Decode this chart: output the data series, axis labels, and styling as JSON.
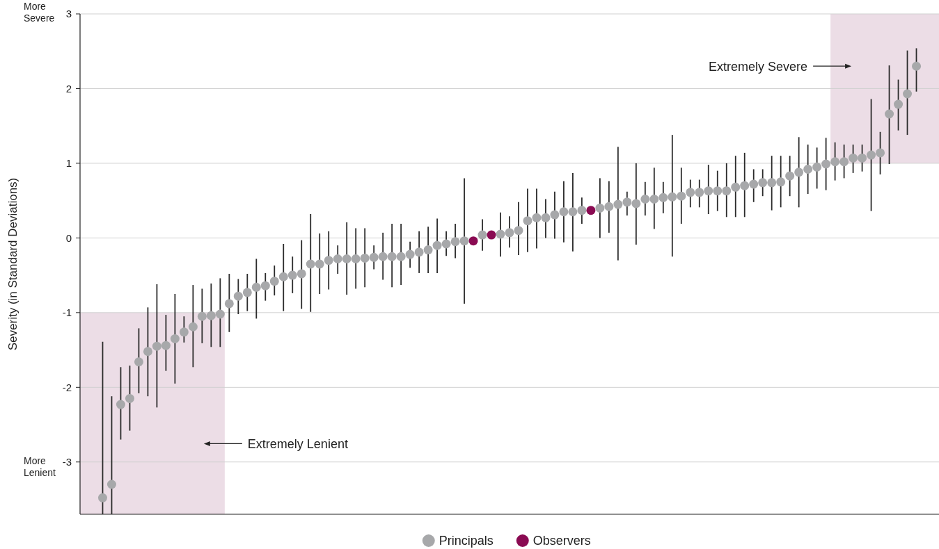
{
  "chart_data": {
    "type": "scatter",
    "ylabel": "Severity (in Standard Deviations)",
    "categories": [
      null,
      null,
      null,
      null,
      null,
      null,
      null,
      null,
      null,
      null,
      null,
      null,
      null,
      null,
      null,
      null,
      null,
      null,
      null,
      null,
      null,
      null,
      null,
      null,
      null,
      null,
      null,
      null,
      null,
      null,
      null,
      null,
      null,
      null,
      null,
      null,
      null,
      null,
      null,
      null,
      null,
      null,
      null,
      null,
      null,
      null,
      null,
      null,
      null,
      null,
      null,
      null,
      null,
      null,
      null,
      null,
      null,
      null,
      null,
      null,
      null,
      null,
      null,
      null,
      null,
      null,
      null,
      null,
      null,
      null,
      null,
      null,
      null,
      null,
      null,
      null,
      null,
      null,
      null,
      null,
      null,
      null,
      null,
      null,
      null,
      null,
      null,
      null,
      null,
      null,
      null,
      null,
      null,
      null,
      null
    ],
    "series": [
      {
        "name": "Principals",
        "color": "#a7a8aa",
        "values": [
          null,
          null,
          -3.48,
          -3.3,
          -2.23,
          -2.15,
          -1.66,
          -1.52,
          -1.45,
          -1.44,
          -1.35,
          -1.26,
          -1.19,
          -1.05,
          -1.04,
          -1.02,
          -0.88,
          -0.78,
          -0.73,
          -0.66,
          -0.64,
          -0.58,
          -0.52,
          -0.5,
          -0.48,
          -0.35,
          -0.35,
          -0.3,
          -0.28,
          -0.28,
          -0.28,
          -0.27,
          -0.26,
          -0.25,
          -0.25,
          -0.25,
          -0.22,
          -0.19,
          -0.16,
          -0.1,
          -0.08,
          -0.05,
          -0.04,
          null,
          0.04,
          null,
          0.05,
          0.07,
          0.1,
          0.23,
          0.27,
          0.27,
          0.31,
          0.35,
          0.35,
          0.37,
          null,
          0.4,
          0.42,
          0.45,
          0.48,
          0.46,
          0.52,
          0.52,
          0.54,
          0.55,
          0.56,
          0.61,
          0.61,
          0.63,
          0.63,
          0.63,
          0.68,
          0.7,
          0.72,
          0.74,
          0.74,
          0.75,
          0.83,
          0.88,
          0.92,
          0.95,
          0.99,
          1.02,
          1.02,
          1.07,
          1.07,
          1.11,
          1.14,
          1.66,
          1.79,
          1.93,
          2.3,
          null,
          null
        ],
        "errors": [
          null,
          null,
          [
            -3.7,
            -1.39
          ],
          [
            -3.7,
            -2.12
          ],
          [
            -2.7,
            -1.73
          ],
          [
            -2.58,
            -1.71
          ],
          [
            -2.08,
            -1.21
          ],
          [
            -2.12,
            -0.93
          ],
          [
            -2.27,
            -0.62
          ],
          [
            -1.78,
            -1.03
          ],
          [
            -1.95,
            -0.75
          ],
          [
            -1.4,
            -1.05
          ],
          [
            -1.73,
            -0.63
          ],
          [
            -1.41,
            -0.68
          ],
          [
            -1.46,
            -0.61
          ],
          [
            -1.46,
            -0.54
          ],
          [
            -1.26,
            -0.48
          ],
          [
            -1.02,
            -0.55
          ],
          [
            -0.98,
            -0.48
          ],
          [
            -1.08,
            -0.28
          ],
          [
            -0.84,
            -0.47
          ],
          [
            -0.77,
            -0.37
          ],
          [
            -0.98,
            -0.08
          ],
          [
            -0.74,
            -0.25
          ],
          [
            -0.95,
            -0.03
          ],
          [
            -0.99,
            0.32
          ],
          [
            -0.75,
            0.06
          ],
          [
            -0.69,
            0.09
          ],
          [
            -0.48,
            -0.1
          ],
          [
            -0.76,
            0.21
          ],
          [
            -0.68,
            0.13
          ],
          [
            -0.66,
            0.13
          ],
          [
            -0.42,
            -0.1
          ],
          [
            -0.56,
            0.07
          ],
          [
            -0.66,
            0.19
          ],
          [
            -0.63,
            0.19
          ],
          [
            -0.4,
            -0.05
          ],
          [
            -0.47,
            0.09
          ],
          [
            -0.47,
            0.15
          ],
          [
            -0.47,
            0.26
          ],
          [
            -0.24,
            0.09
          ],
          [
            -0.27,
            0.19
          ],
          [
            -0.88,
            0.8
          ],
          null,
          [
            -0.17,
            0.25
          ],
          null,
          [
            -0.25,
            0.34
          ],
          [
            -0.13,
            0.29
          ],
          [
            -0.23,
            0.48
          ],
          [
            -0.19,
            0.66
          ],
          [
            -0.14,
            0.66
          ],
          [
            0.0,
            0.52
          ],
          [
            -0.01,
            0.62
          ],
          [
            -0.06,
            0.76
          ],
          [
            -0.18,
            0.87
          ],
          [
            0.19,
            0.54
          ],
          null,
          [
            0.0,
            0.8
          ],
          [
            0.07,
            0.76
          ],
          [
            -0.3,
            1.22
          ],
          [
            0.3,
            0.62
          ],
          [
            -0.09,
            1.0
          ],
          [
            0.3,
            0.75
          ],
          [
            0.12,
            0.94
          ],
          [
            0.33,
            0.75
          ],
          [
            -0.25,
            1.38
          ],
          [
            0.19,
            0.94
          ],
          [
            0.41,
            0.78
          ],
          [
            0.41,
            0.78
          ],
          [
            0.32,
            0.98
          ],
          [
            0.36,
            0.9
          ],
          [
            0.28,
            1.0
          ],
          [
            0.28,
            1.1
          ],
          [
            0.28,
            1.14
          ],
          [
            0.48,
            0.92
          ],
          [
            0.56,
            0.92
          ],
          [
            0.37,
            1.1
          ],
          [
            0.41,
            1.1
          ],
          [
            0.56,
            1.1
          ],
          [
            0.41,
            1.35
          ],
          [
            0.59,
            1.25
          ],
          [
            0.66,
            1.21
          ],
          [
            0.64,
            1.34
          ],
          [
            0.77,
            1.28
          ],
          [
            0.8,
            1.25
          ],
          [
            0.87,
            1.25
          ],
          [
            0.89,
            1.25
          ],
          [
            0.36,
            1.86
          ],
          [
            0.85,
            1.42
          ],
          [
            0.99,
            2.31
          ],
          [
            1.44,
            2.12
          ],
          [
            1.38,
            2.51
          ],
          [
            1.96,
            2.54
          ],
          null,
          null
        ]
      },
      {
        "name": "Observers",
        "color": "#8a0a52",
        "values": [
          null,
          null,
          null,
          null,
          null,
          null,
          null,
          null,
          null,
          null,
          null,
          null,
          null,
          null,
          null,
          null,
          null,
          null,
          null,
          null,
          null,
          null,
          null,
          null,
          null,
          null,
          null,
          null,
          null,
          null,
          null,
          null,
          null,
          null,
          null,
          null,
          null,
          null,
          null,
          null,
          null,
          null,
          null,
          -0.04,
          null,
          0.04,
          null,
          null,
          null,
          null,
          null,
          null,
          null,
          null,
          null,
          null,
          0.37,
          null,
          null,
          null,
          null,
          null,
          null,
          null,
          null,
          null,
          null,
          null,
          null,
          null,
          null,
          null,
          null,
          null,
          null,
          null,
          null,
          null,
          null,
          null,
          null,
          null,
          null,
          null,
          null,
          null,
          null,
          null,
          null,
          null,
          null,
          null,
          null,
          null,
          null
        ]
      }
    ],
    "ylim": [
      -3.7,
      3
    ],
    "yticks": [
      -3,
      -2,
      -1,
      0,
      1,
      2,
      3
    ],
    "grid": "y",
    "tick_labels": "y",
    "marker": "circle",
    "legend": "bottom",
    "bands": [
      {
        "axis": "y",
        "from": -3.7,
        "to": -1,
        "label": "Extremely Lenient",
        "color": "#ecdde6"
      },
      {
        "axis": "y",
        "from": 1,
        "to": 3,
        "label": "Extremely Severe",
        "color": "#ecdde6"
      }
    ],
    "annotations": [
      "More Severe",
      "More Lenient"
    ]
  }
}
